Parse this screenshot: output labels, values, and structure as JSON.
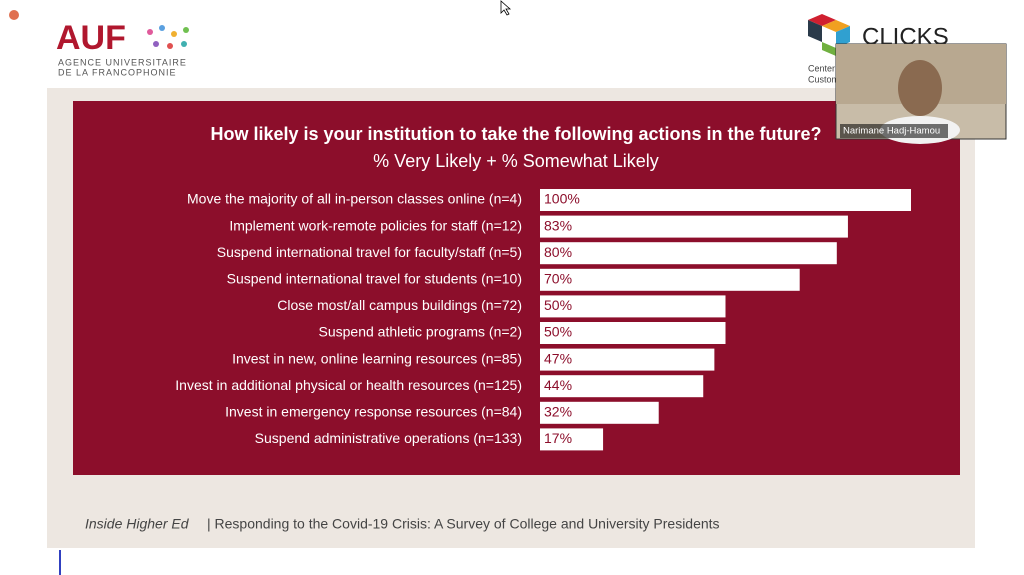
{
  "header": {
    "auf_logo": "AUF",
    "auf_line1": "AGENCE UNIVERSITAIRE",
    "auf_line2": "DE LA FRANCOPHONIE",
    "clicks_logo": "CLICKS",
    "clicks_line1": "Center",
    "clicks_line2": "Custom"
  },
  "video": {
    "participant": "Narimane Hadj-Hamou"
  },
  "chart_data": {
    "type": "hbar",
    "title": "How likely is your institution to take the following actions in the future?",
    "subtitle": "% Very Likely + % Somewhat Likely",
    "categories": [
      "Move the majority of all in-person classes online (n=4)",
      "Implement work-remote policies for staff (n=12)",
      "Suspend international travel for faculty/staff (n=5)",
      "Suspend international travel for students (n=10)",
      "Close most/all campus buildings (n=72)",
      "Suspend athletic programs (n=2)",
      "Invest in new, online learning resources (n=85)",
      "Invest in additional physical or health resources (n=125)",
      "Invest in emergency response resources (n=84)",
      "Suspend administrative operations (n=133)"
    ],
    "values": [
      100,
      83,
      80,
      70,
      50,
      50,
      47,
      44,
      32,
      17
    ],
    "value_labels": [
      "100%",
      "83%",
      "80%",
      "70%",
      "50%",
      "50%",
      "47%",
      "44%",
      "32%",
      "17%"
    ],
    "color": "#ffffff",
    "xlim": [
      0,
      100
    ]
  },
  "source": {
    "publication": "Inside Higher Ed",
    "text": "| Responding to the Covid-19 Crisis: A Survey of College and University Presidents"
  }
}
